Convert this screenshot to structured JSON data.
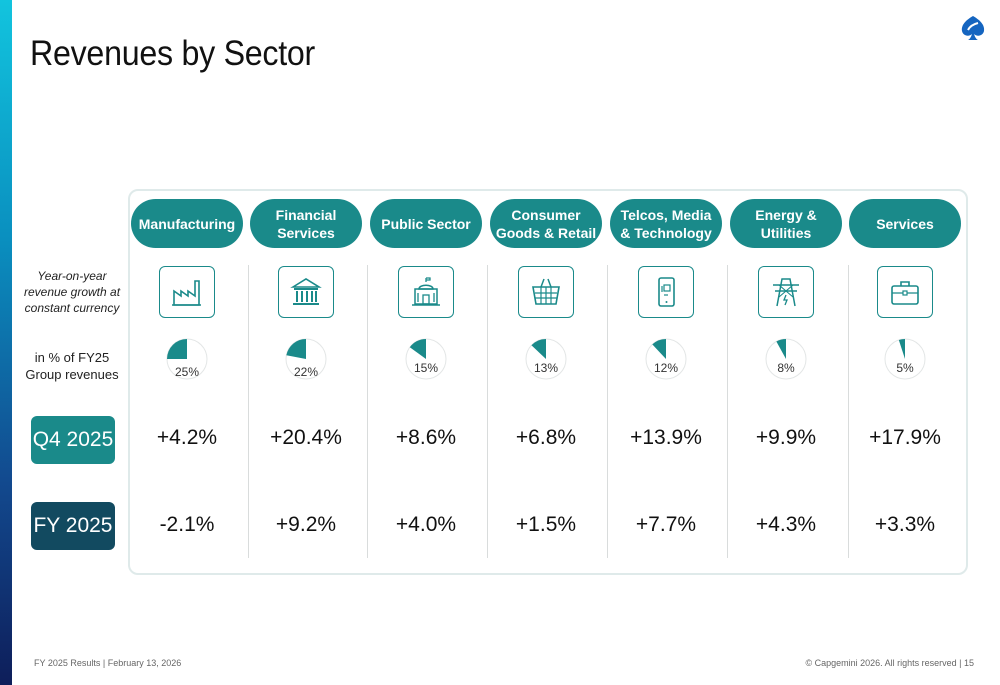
{
  "title": "Revenues by Sector",
  "row_labels": {
    "growth": "Year-on-year\nrevenue growth at\nconstant currency",
    "share": "in % of FY25\nGroup revenues"
  },
  "periods": {
    "q4": "Q4 2025",
    "fy": "FY 2025"
  },
  "colors": {
    "accent": "#1a8a8a",
    "dark": "#124a60",
    "pie_bg": "#ffffff"
  },
  "sectors": [
    {
      "name": "Manufacturing",
      "icon": "factory-icon",
      "share_label": "25%",
      "q4_label": "+4.2%",
      "fy_label": "-2.1%"
    },
    {
      "name": "Financial\nServices",
      "icon": "bank-icon",
      "share_label": "22%",
      "q4_label": "+20.4%",
      "fy_label": "+9.2%"
    },
    {
      "name": "Public Sector",
      "icon": "government-building-icon",
      "share_label": "15%",
      "q4_label": "+8.6%",
      "fy_label": "+4.0%"
    },
    {
      "name": "Consumer\nGoods & Retail",
      "icon": "shopping-basket-icon",
      "share_label": "13%",
      "q4_label": "+6.8%",
      "fy_label": "+1.5%"
    },
    {
      "name": "Telcos, Media\n& Technology",
      "icon": "smartphone-icon",
      "share_label": "12%",
      "q4_label": "+13.9%",
      "fy_label": "+7.7%"
    },
    {
      "name": "Energy &\nUtilities",
      "icon": "power-pylon-icon",
      "share_label": "8%",
      "q4_label": "+9.9%",
      "fy_label": "+4.3%"
    },
    {
      "name": "Services",
      "icon": "briefcase-icon",
      "share_label": "5%",
      "q4_label": "+17.9%",
      "fy_label": "+3.3%"
    }
  ],
  "chart_data": {
    "type": "table",
    "categories": [
      "Manufacturing",
      "Financial Services",
      "Public Sector",
      "Consumer Goods & Retail",
      "Telcos, Media & Technology",
      "Energy & Utilities",
      "Services"
    ],
    "series": [
      {
        "name": "Q4 2025",
        "values": [
          4.2,
          20.4,
          8.6,
          6.8,
          13.9,
          9.9,
          17.9
        ]
      },
      {
        "name": "FY 2025",
        "values": [
          -2.1,
          9.2,
          4.0,
          1.5,
          7.7,
          4.3,
          3.3
        ]
      }
    ],
    "shares": [
      25,
      22,
      15,
      13,
      12,
      8,
      5
    ]
  },
  "footer": {
    "left": "FY 2025 Results |  February 13, 2026",
    "right": "© Capgemini 2026. All rights reserved  |   15"
  }
}
